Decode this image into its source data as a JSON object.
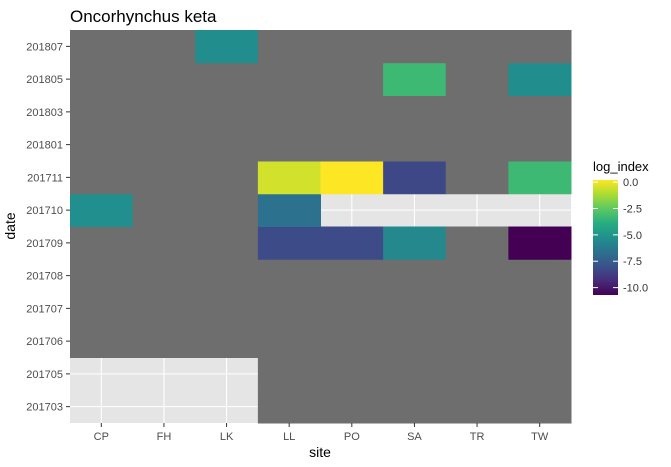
{
  "chart_data": {
    "type": "heatmap",
    "title": "Oncorhynchus keta",
    "xlabel": "site",
    "ylabel": "date",
    "x_categories": [
      "CP",
      "FH",
      "LK",
      "LL",
      "PO",
      "SA",
      "TR",
      "TW"
    ],
    "y_categories": [
      "201703",
      "201705",
      "201706",
      "201707",
      "201708",
      "201709",
      "201710",
      "201711",
      "201801",
      "201803",
      "201805",
      "201807"
    ],
    "legend": {
      "title": "log_index",
      "min": -10.7,
      "max": 0.2,
      "ticks": [
        0.0,
        -2.5,
        -5.0,
        -7.5,
        -10.0
      ],
      "tick_labels": [
        "0.0",
        "-2.5",
        "-5.0",
        "-7.5",
        "-10.0"
      ],
      "position": "right"
    },
    "na_color": "#6e6e6e",
    "panel_background": "#e5e5e5",
    "grid": true,
    "cells": [
      {
        "x": "CP",
        "y": "201706",
        "value": null
      },
      {
        "x": "FH",
        "y": "201706",
        "value": null
      },
      {
        "x": "LK",
        "y": "201706",
        "value": null
      },
      {
        "x": "LL",
        "y": "201706",
        "value": null
      },
      {
        "x": "PO",
        "y": "201706",
        "value": null
      },
      {
        "x": "SA",
        "y": "201706",
        "value": null
      },
      {
        "x": "TR",
        "y": "201706",
        "value": null
      },
      {
        "x": "TW",
        "y": "201706",
        "value": null
      },
      {
        "x": "CP",
        "y": "201707",
        "value": null
      },
      {
        "x": "FH",
        "y": "201707",
        "value": null
      },
      {
        "x": "LK",
        "y": "201707",
        "value": null
      },
      {
        "x": "LL",
        "y": "201707",
        "value": null
      },
      {
        "x": "PO",
        "y": "201707",
        "value": null
      },
      {
        "x": "SA",
        "y": "201707",
        "value": null
      },
      {
        "x": "TR",
        "y": "201707",
        "value": null
      },
      {
        "x": "TW",
        "y": "201707",
        "value": null
      },
      {
        "x": "CP",
        "y": "201708",
        "value": null
      },
      {
        "x": "FH",
        "y": "201708",
        "value": null
      },
      {
        "x": "LK",
        "y": "201708",
        "value": null
      },
      {
        "x": "LL",
        "y": "201708",
        "value": null
      },
      {
        "x": "PO",
        "y": "201708",
        "value": null
      },
      {
        "x": "SA",
        "y": "201708",
        "value": null
      },
      {
        "x": "TR",
        "y": "201708",
        "value": null
      },
      {
        "x": "TW",
        "y": "201708",
        "value": null
      },
      {
        "x": "CP",
        "y": "201709",
        "value": null
      },
      {
        "x": "FH",
        "y": "201709",
        "value": null
      },
      {
        "x": "LK",
        "y": "201709",
        "value": null
      },
      {
        "x": "LL",
        "y": "201709",
        "value": -8.2
      },
      {
        "x": "PO",
        "y": "201709",
        "value": -8.2
      },
      {
        "x": "SA",
        "y": "201709",
        "value": -5.6
      },
      {
        "x": "TR",
        "y": "201709",
        "value": null
      },
      {
        "x": "TW",
        "y": "201709",
        "value": -10.7
      },
      {
        "x": "CP",
        "y": "201710",
        "value": -5.3
      },
      {
        "x": "FH",
        "y": "201710",
        "value": null
      },
      {
        "x": "LK",
        "y": "201710",
        "value": null
      },
      {
        "x": "LL",
        "y": "201710",
        "value": -6.6
      },
      {
        "x": "CP",
        "y": "201711",
        "value": null
      },
      {
        "x": "FH",
        "y": "201711",
        "value": null
      },
      {
        "x": "LK",
        "y": "201711",
        "value": null
      },
      {
        "x": "LL",
        "y": "201711",
        "value": -0.5
      },
      {
        "x": "PO",
        "y": "201711",
        "value": 0.2
      },
      {
        "x": "SA",
        "y": "201711",
        "value": -8.3
      },
      {
        "x": "TR",
        "y": "201711",
        "value": null
      },
      {
        "x": "TW",
        "y": "201711",
        "value": -3.3
      },
      {
        "x": "CP",
        "y": "201801",
        "value": null
      },
      {
        "x": "FH",
        "y": "201801",
        "value": null
      },
      {
        "x": "LK",
        "y": "201801",
        "value": null
      },
      {
        "x": "LL",
        "y": "201801",
        "value": null
      },
      {
        "x": "PO",
        "y": "201801",
        "value": null
      },
      {
        "x": "SA",
        "y": "201801",
        "value": null
      },
      {
        "x": "TR",
        "y": "201801",
        "value": null
      },
      {
        "x": "TW",
        "y": "201801",
        "value": null
      },
      {
        "x": "CP",
        "y": "201803",
        "value": null
      },
      {
        "x": "FH",
        "y": "201803",
        "value": null
      },
      {
        "x": "LK",
        "y": "201803",
        "value": null
      },
      {
        "x": "LL",
        "y": "201803",
        "value": null
      },
      {
        "x": "PO",
        "y": "201803",
        "value": null
      },
      {
        "x": "SA",
        "y": "201803",
        "value": null
      },
      {
        "x": "TR",
        "y": "201803",
        "value": null
      },
      {
        "x": "TW",
        "y": "201803",
        "value": null
      },
      {
        "x": "CP",
        "y": "201805",
        "value": null
      },
      {
        "x": "FH",
        "y": "201805",
        "value": null
      },
      {
        "x": "LK",
        "y": "201805",
        "value": null
      },
      {
        "x": "LL",
        "y": "201805",
        "value": null
      },
      {
        "x": "PO",
        "y": "201805",
        "value": null
      },
      {
        "x": "SA",
        "y": "201805",
        "value": -3.3
      },
      {
        "x": "TR",
        "y": "201805",
        "value": null
      },
      {
        "x": "TW",
        "y": "201805",
        "value": -5.4
      },
      {
        "x": "CP",
        "y": "201807",
        "value": null
      },
      {
        "x": "FH",
        "y": "201807",
        "value": null
      },
      {
        "x": "LK",
        "y": "201807",
        "value": -5.4
      },
      {
        "x": "LL",
        "y": "201807",
        "value": null
      },
      {
        "x": "PO",
        "y": "201807",
        "value": null
      },
      {
        "x": "SA",
        "y": "201807",
        "value": null
      },
      {
        "x": "TR",
        "y": "201807",
        "value": null
      },
      {
        "x": "TW",
        "y": "201807",
        "value": null
      },
      {
        "x": "LL",
        "y": "201703",
        "value": null
      },
      {
        "x": "PO",
        "y": "201703",
        "value": null
      },
      {
        "x": "SA",
        "y": "201703",
        "value": null
      },
      {
        "x": "TR",
        "y": "201703",
        "value": null
      },
      {
        "x": "TW",
        "y": "201703",
        "value": null
      },
      {
        "x": "LL",
        "y": "201705",
        "value": null
      },
      {
        "x": "PO",
        "y": "201705",
        "value": null
      },
      {
        "x": "SA",
        "y": "201705",
        "value": null
      },
      {
        "x": "TR",
        "y": "201705",
        "value": null
      },
      {
        "x": "TW",
        "y": "201705",
        "value": null
      }
    ]
  }
}
